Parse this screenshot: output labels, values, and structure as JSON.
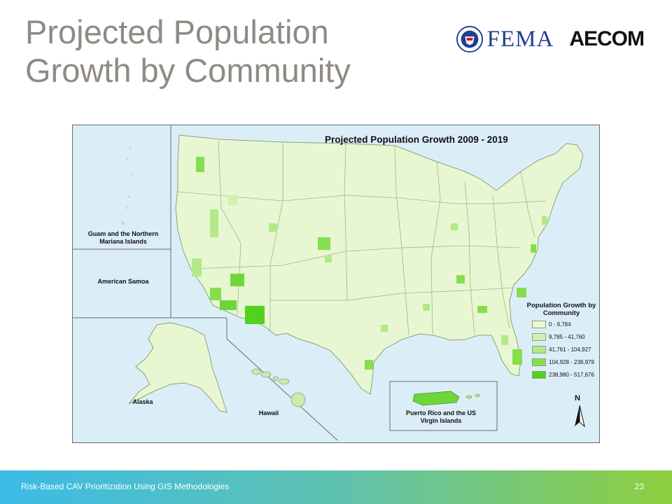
{
  "slide": {
    "title": "Projected Population Growth by Community",
    "logos": {
      "fema": "FEMA",
      "aecom": "AECOM"
    }
  },
  "map": {
    "title": "Projected Population Growth 2009 - 2019",
    "insets": {
      "guam": "Guam and the Northern Mariana Islands",
      "samoa": "American Samoa",
      "alaska": "Alaska",
      "hawaii": "Hawaii",
      "puerto_rico": "Puerto Rico and the US Virgin Islands"
    },
    "legend": {
      "title": "Population Growth by Community",
      "items": [
        {
          "label": "0 - 9,784",
          "color": "#eaf8d6"
        },
        {
          "label": "9,785 - 41,760",
          "color": "#d2f1b0"
        },
        {
          "label": "41,761 - 104,927",
          "color": "#b3e98a"
        },
        {
          "label": "104,928 - 238,979",
          "color": "#86de4f"
        },
        {
          "label": "238,980 - 517,676",
          "color": "#52d11f"
        }
      ]
    },
    "north_arrow": "N",
    "colors": {
      "water": "#dbeef8",
      "land": "#e9f8d4",
      "border": "#6b6b6b"
    }
  },
  "footer": {
    "text": "Risk-Based CAV Prioritization Using GIS Methodologies",
    "page_number": "23"
  }
}
